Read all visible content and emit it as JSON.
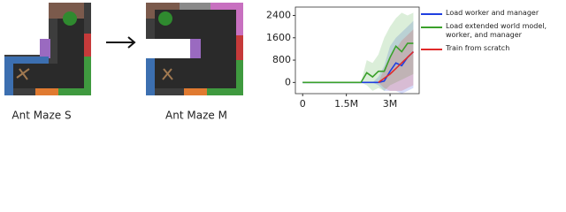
{
  "panels": [
    {
      "label": "Ant Maze S"
    },
    {
      "label": "Ant Maze M"
    }
  ],
  "chart_data": {
    "type": "line",
    "x": [
      0,
      500000,
      1000000,
      1500000,
      2000000,
      2200000,
      2400000,
      2600000,
      2800000,
      3000000,
      3200000,
      3400000,
      3600000,
      3800000
    ],
    "xlim": [
      -250000,
      4000000
    ],
    "xticks": [
      0,
      {
        "value": 1500000,
        "label": "1.5M"
      },
      {
        "value": 3000000,
        "label": "3M"
      }
    ],
    "ylim": [
      -400,
      2700
    ],
    "yticks": [
      0,
      800,
      1600,
      2400
    ],
    "legend": "right",
    "series": [
      {
        "name": "Load worker and manager",
        "color": "#1f3fe0",
        "values": [
          0,
          0,
          0,
          0,
          0,
          0,
          0,
          0,
          50,
          400,
          700,
          600,
          900,
          1100
        ],
        "lower": [
          0,
          0,
          0,
          0,
          0,
          0,
          0,
          -100,
          -300,
          -300,
          -300,
          -400,
          -300,
          -200
        ],
        "upper": [
          0,
          0,
          0,
          0,
          0,
          0,
          0,
          200,
          600,
          1300,
          1600,
          1800,
          2000,
          2200
        ]
      },
      {
        "name": "Load extended world model, worker, and manager",
        "color": "#3aa02a",
        "values": [
          0,
          0,
          0,
          0,
          0,
          350,
          200,
          400,
          400,
          900,
          1300,
          1100,
          1400,
          1400
        ],
        "lower": [
          0,
          0,
          0,
          0,
          0,
          -100,
          -300,
          -200,
          -300,
          -100,
          0,
          100,
          200,
          300
        ],
        "upper": [
          0,
          0,
          0,
          0,
          0,
          800,
          700,
          1000,
          1600,
          2000,
          2300,
          2500,
          2400,
          2500
        ]
      },
      {
        "name": "Train from scratch",
        "color": "#e02a2a",
        "values": [
          null,
          null,
          null,
          null,
          null,
          null,
          null,
          0,
          150,
          300,
          500,
          700,
          900,
          1100
        ],
        "lower": [
          null,
          null,
          null,
          null,
          null,
          null,
          null,
          0,
          -200,
          -300,
          -300,
          -300,
          -200,
          -100
        ],
        "upper": [
          null,
          null,
          null,
          null,
          null,
          null,
          null,
          0,
          500,
          900,
          1200,
          1500,
          1700,
          1900
        ]
      }
    ]
  }
}
